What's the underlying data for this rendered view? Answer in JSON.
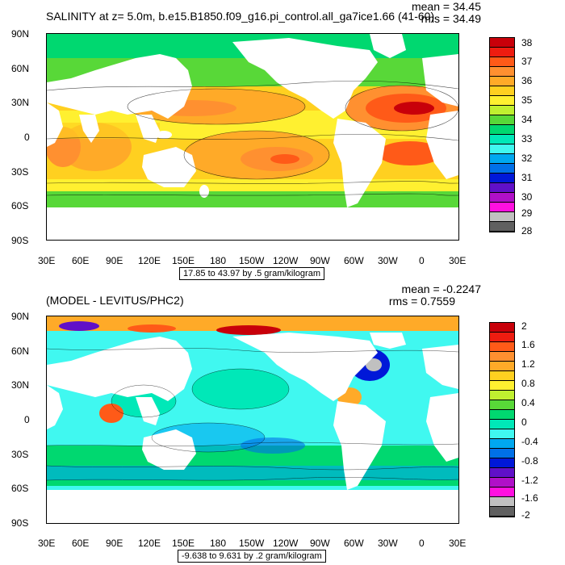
{
  "top": {
    "title": "SALINITY at z=   5.0m, b.e15.B1850.f09_g16.pi_control.all_ga7ice1.66 (41-60)",
    "mean_text": "mean = 34.45",
    "rms_text": "rms = 34.49",
    "range_text": "17.85 to 43.97 by .5 gram/kilogram",
    "colorbar_labels": [
      "38",
      "37",
      "36",
      "35",
      "34",
      "33",
      "32",
      "31",
      "30",
      "29",
      "28"
    ],
    "colorbar_colors": [
      "#c8000a",
      "#ee1c10",
      "#ff5a18",
      "#ff9030",
      "#ffaa28",
      "#ffd020",
      "#fff030",
      "#c0f030",
      "#58d838",
      "#00d870",
      "#00e8b8",
      "#40f8f0",
      "#00a8f0",
      "#0070e8",
      "#0018d8",
      "#6010c8",
      "#b010c8",
      "#ff10e0",
      "#c0c0c0",
      "#606060"
    ]
  },
  "bottom": {
    "title": "(MODEL - LEVITUS/PHC2)",
    "mean_text": "mean = -0.2247",
    "rms_text": "rms = 0.7559",
    "range_text": "-9.638 to 9.631 by .2 gram/kilogram",
    "colorbar_labels": [
      "2",
      "1.6",
      "1.2",
      "0.8",
      "0.4",
      "0",
      "-0.4",
      "-0.8",
      "-1.2",
      "-1.6",
      "-2"
    ],
    "colorbar_colors": [
      "#c8000a",
      "#ee1c10",
      "#ff5a18",
      "#ff9030",
      "#ffaa28",
      "#ffd020",
      "#fff030",
      "#c0f030",
      "#58d838",
      "#00d870",
      "#00e8b8",
      "#40f8f0",
      "#00a8f0",
      "#0070e8",
      "#0018d8",
      "#6010c8",
      "#b010c8",
      "#ff10e0",
      "#c0c0c0",
      "#606060"
    ]
  },
  "lat_labels": [
    "90N",
    "60N",
    "30N",
    "0",
    "30S",
    "60S",
    "90S"
  ],
  "lon_labels": [
    "30E",
    "60E",
    "90E",
    "120E",
    "150E",
    "180",
    "150W",
    "120W",
    "90W",
    "60W",
    "30W",
    "0",
    "30E"
  ],
  "colors": {
    "land": "#ffffff",
    "ocean_top_tropics": "#ffd020",
    "ocean_top_subtropics": "#ff9030",
    "ocean_top_southern": "#58d838",
    "ocean_bot_base": "#40f8f0",
    "ocean_bot_mid": "#00d870"
  }
}
